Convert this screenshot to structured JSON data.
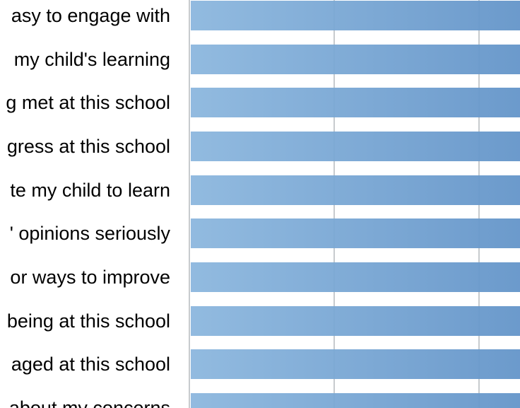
{
  "chart_data": {
    "type": "bar",
    "orientation": "horizontal",
    "title": "",
    "xlabel": "",
    "ylabel": "",
    "categories": [
      "asy to engage with",
      "my child's learning",
      "g met at this school",
      "gress at this school",
      "te my child to learn",
      "' opinions seriously",
      "or ways to improve",
      "being at this school",
      "aged at this school",
      "about my concerns"
    ],
    "values": [
      null,
      null,
      null,
      null,
      null,
      null,
      null,
      null,
      null,
      null
    ],
    "bars_clipped_at_right_edge": true,
    "labels_truncated_at_left_edge": true,
    "note": "Cropped survey bar chart: all 10 horizontal bars run past the right edge of the image, so no numeric values or axis tick labels are visible. Category labels are cut off on the left.",
    "layout_hints": {
      "grid": "two vertical gridlines visible in gaps between bars",
      "legend": "none visible",
      "axis_values_visible": false
    }
  },
  "colors": {
    "background": "#ffffff",
    "bar_gradient_left": "#8cb7de",
    "bar_gradient_right": "#6495c9",
    "gridline": "#c7cbce",
    "label_text": "#000000"
  }
}
